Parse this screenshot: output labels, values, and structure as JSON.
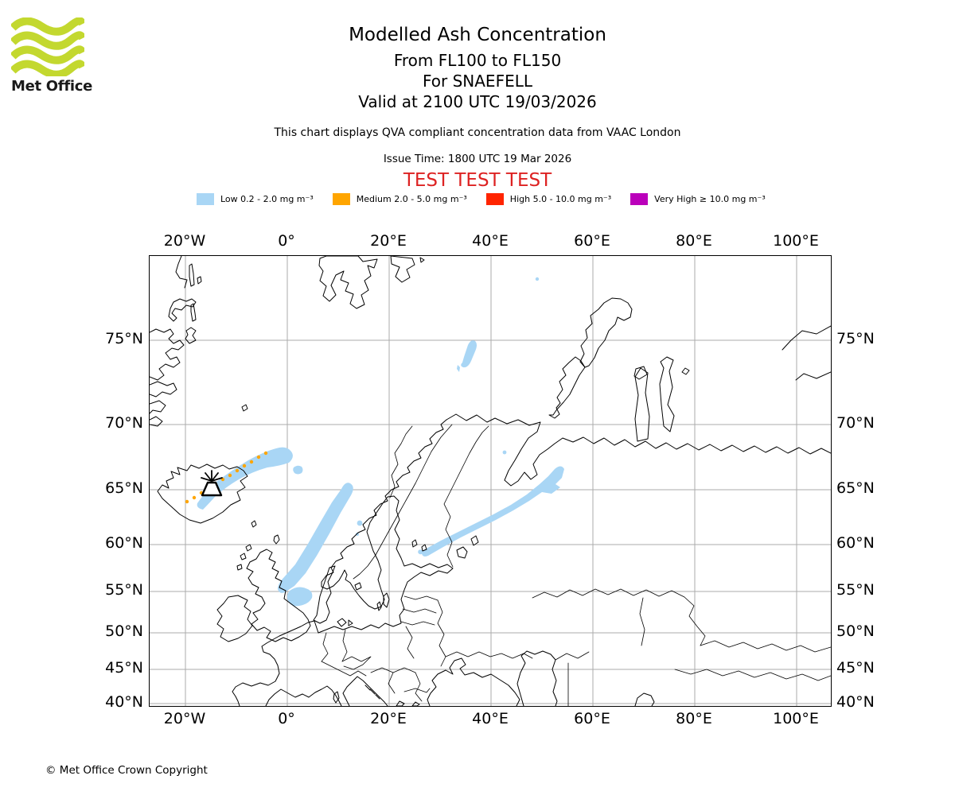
{
  "header": {
    "logo_text": "Met Office",
    "title": "Modelled Ash Concentration",
    "subtitle_levels": "From FL100 to FL150",
    "subtitle_volcano": "For SNAEFELL",
    "subtitle_valid": "Valid at 2100 UTC 19/03/2026",
    "description": "This chart displays QVA compliant concentration data from VAAC London",
    "issue_time": "Issue Time: 1800 UTC 19 Mar 2026",
    "test_banner": "TEST TEST TEST",
    "test_banner_color": "#dd2222"
  },
  "legend": {
    "items": [
      {
        "name": "low",
        "label": "Low 0.2 - 2.0 mg m⁻³",
        "color": "#A9D6F5"
      },
      {
        "name": "medium",
        "label": "Medium 2.0 - 5.0 mg m⁻³",
        "color": "#FFA500"
      },
      {
        "name": "high",
        "label": "High 5.0 - 10.0 mg m⁻³",
        "color": "#FF2400"
      },
      {
        "name": "very-high",
        "label": "Very High ≥ 10.0 mg m⁻³",
        "color": "#BB00BB"
      }
    ]
  },
  "map": {
    "lon_labels": [
      "20°W",
      "0°",
      "20°E",
      "40°E",
      "60°E",
      "80°E",
      "100°E"
    ],
    "lat_labels": [
      "75°N",
      "70°N",
      "65°N",
      "60°N",
      "55°N",
      "50°N",
      "45°N",
      "40°N"
    ],
    "grid_color": "#ababab",
    "coast_color": "#000000",
    "marker": "volcano-symbol-SNAEFELL-Iceland"
  },
  "footer": {
    "copyright": "© Met Office Crown Copyright"
  }
}
